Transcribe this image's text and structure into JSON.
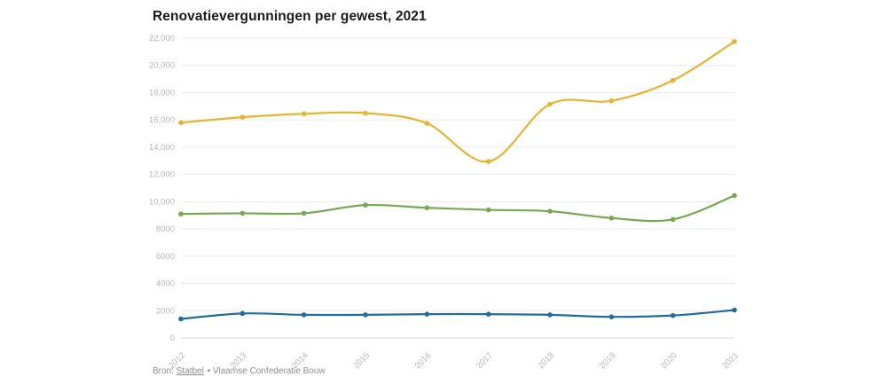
{
  "title": "Renovatievergunningen per gewest, 2021",
  "footer": {
    "label": "Bron:",
    "link": "Statbel",
    "rest": "• Vlaamse Confederatie Bouw"
  },
  "colors": {
    "title_text": "#1a1a1a",
    "tick_text": "#b7b7b7",
    "grid_line": "#ebebeb",
    "zero_line": "#d9d9d9",
    "footer_text": "#8e8e8e"
  },
  "chart_data": {
    "type": "line",
    "title": "Renovatievergunningen per gewest, 2021",
    "x": [
      "2012",
      "2013",
      "2014",
      "2015",
      "2016",
      "2017",
      "2018",
      "2019",
      "2020",
      "2021"
    ],
    "series": [
      {
        "name": "yellow-line",
        "color": "#E8B430",
        "values": [
          15800,
          16200,
          16450,
          16500,
          15750,
          12950,
          17150,
          17400,
          18900,
          21750
        ]
      },
      {
        "name": "green-line",
        "color": "#74A94F",
        "values": [
          9100,
          9150,
          9150,
          9750,
          9550,
          9400,
          9300,
          8800,
          8700,
          10450
        ]
      },
      {
        "name": "blue-line",
        "color": "#1F6D9D",
        "values": [
          1400,
          1800,
          1700,
          1700,
          1750,
          1750,
          1700,
          1550,
          1650,
          2050
        ]
      }
    ],
    "ylim": [
      0,
      22000
    ],
    "ytick_step": 2000,
    "ytick_labels": [
      "0",
      "2000",
      "4000",
      "6000",
      "8000",
      "10,000",
      "12,000",
      "14,000",
      "16,000",
      "18,000",
      "20,000",
      "22,000"
    ],
    "grid": true,
    "legend": "none",
    "xlabel": "",
    "ylabel": ""
  }
}
